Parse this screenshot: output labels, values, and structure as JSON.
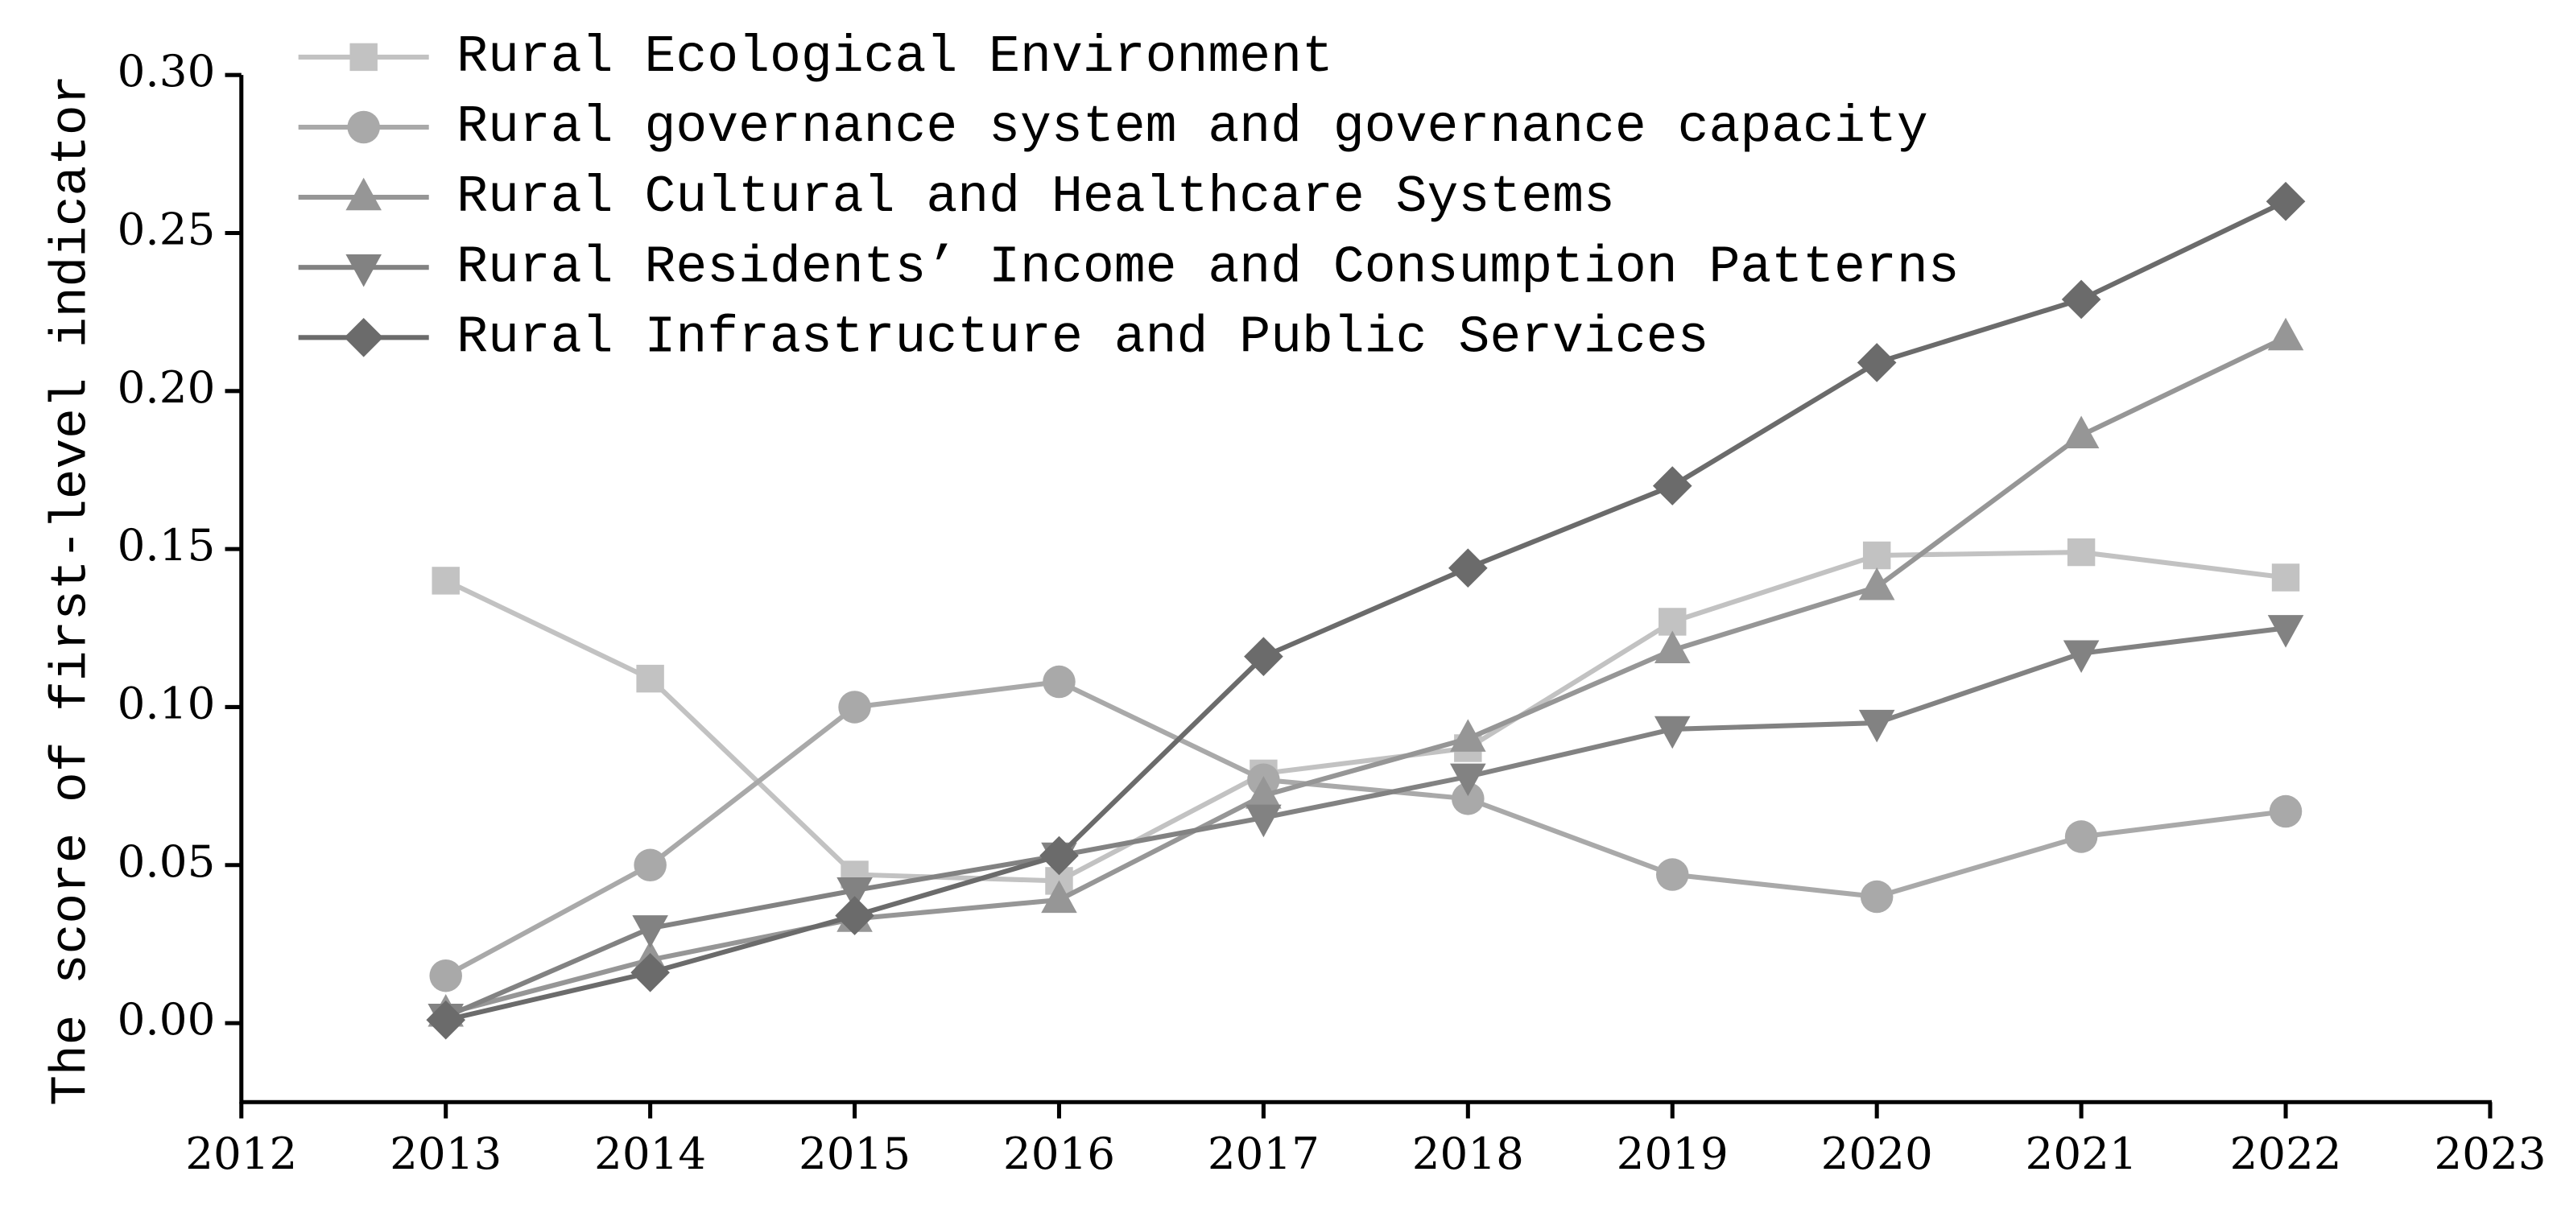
{
  "chart_data": {
    "type": "line",
    "y_label": "The score of first-level indicator",
    "x": [
      2013,
      2014,
      2015,
      2016,
      2017,
      2018,
      2019,
      2020,
      2021,
      2022
    ],
    "xlim": [
      2012,
      2023
    ],
    "xticks": [
      2012,
      2013,
      2014,
      2015,
      2016,
      2017,
      2018,
      2019,
      2020,
      2021,
      2022,
      2023
    ],
    "ylim": [
      -0.025,
      0.3
    ],
    "yticks": [
      {
        "value": 0,
        "label": "0.00"
      },
      0.05,
      {
        "value": 0.1,
        "label": "0.10"
      },
      0.15,
      {
        "value": 0.2,
        "label": "0.20"
      },
      0.25,
      {
        "value": 0.3,
        "label": "0.30"
      }
    ],
    "legend": "upper left",
    "series": [
      {
        "name": "Rural Ecological Environment",
        "color": "#c2c2c2",
        "marker": "square",
        "values": [
          0.14,
          0.109,
          0.047,
          0.045,
          0.079,
          0.087,
          0.127,
          0.148,
          0.149,
          0.141
        ]
      },
      {
        "name": "Rural governance system and governance capacity",
        "color": "#a9a9a9",
        "marker": "circle",
        "values": [
          0.015,
          0.05,
          0.1,
          0.108,
          0.077,
          0.071,
          0.047,
          0.04,
          0.059,
          0.067
        ]
      },
      {
        "name": "Rural Cultural and Healthcare Systems",
        "color": "#969696",
        "marker": "triangle-up",
        "values": [
          0.003,
          0.02,
          0.033,
          0.039,
          0.072,
          0.09,
          0.118,
          0.138,
          0.186,
          0.217
        ]
      },
      {
        "name": "Rural Residents’ Income and Consumption Patterns",
        "color": "#828282",
        "marker": "triangle-down",
        "values": [
          0.002,
          0.03,
          0.042,
          0.053,
          0.065,
          0.078,
          0.093,
          0.095,
          0.117,
          0.125
        ]
      },
      {
        "name": "Rural Infrastructure and Public Services",
        "color": "#6b6b6b",
        "marker": "diamond",
        "values": [
          0.001,
          0.016,
          0.034,
          0.053,
          0.116,
          0.144,
          0.17,
          0.209,
          0.229,
          0.26
        ]
      }
    ]
  }
}
